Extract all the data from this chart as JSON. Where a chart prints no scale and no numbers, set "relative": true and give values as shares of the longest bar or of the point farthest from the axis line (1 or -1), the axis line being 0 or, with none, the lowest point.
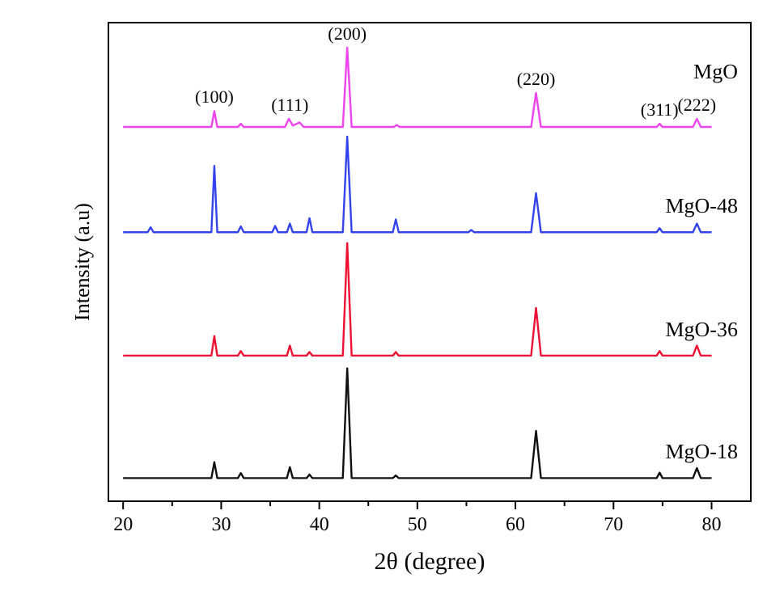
{
  "chart_data": {
    "type": "line",
    "relative": true,
    "xlabel": "2θ (degree)",
    "ylabel": "Intensity (a.u)",
    "xlim": [
      18.5,
      84
    ],
    "xticks": [
      20,
      {
        "value": 25,
        "label": null
      },
      30,
      {
        "value": 35,
        "label": null
      },
      40,
      {
        "value": 45,
        "label": null
      },
      50,
      {
        "value": 55,
        "label": null
      },
      60,
      {
        "value": 65,
        "label": null
      },
      70,
      {
        "value": 75,
        "label": null
      },
      80
    ],
    "grid": false,
    "legend": false,
    "marker": "none",
    "line_style": "solid",
    "series": [
      {
        "name": "MgO",
        "color": "#ee44ee",
        "x": [
          20,
          29.0,
          29.3,
          29.6,
          31.7,
          32.0,
          32.3,
          36.5,
          36.9,
          37.3,
          38,
          38.4,
          42.4,
          42.85,
          43.3,
          47.6,
          47.9,
          48.2,
          61.6,
          62.1,
          62.6,
          74.4,
          74.7,
          75.0,
          78.1,
          78.5,
          78.9,
          80
        ],
        "values": [
          0.825,
          0.825,
          0.86,
          0.825,
          0.825,
          0.832,
          0.825,
          0.825,
          0.843,
          0.828,
          0.835,
          0.825,
          0.825,
          1,
          0.825,
          0.825,
          0.829,
          0.825,
          0.825,
          0.9,
          0.825,
          0.825,
          0.832,
          0.825,
          0.825,
          0.843,
          0.825,
          0.825
        ]
      },
      {
        "name": "MgO-48",
        "color": "#3344ee",
        "x": [
          20,
          22.5,
          22.8,
          23.1,
          29.0,
          29.3,
          29.6,
          31.7,
          32.0,
          32.3,
          35.2,
          35.5,
          35.8,
          36.7,
          37.0,
          37.3,
          38.7,
          39.0,
          39.3,
          42.4,
          42.85,
          43.3,
          47.5,
          47.8,
          48.1,
          55.2,
          55.5,
          55.8,
          61.6,
          62.1,
          62.6,
          74.4,
          74.7,
          75.0,
          78.1,
          78.5,
          78.9,
          80
        ],
        "values": [
          0.593,
          0.593,
          0.604,
          0.593,
          0.593,
          0.739,
          0.593,
          0.593,
          0.606,
          0.593,
          0.593,
          0.607,
          0.593,
          0.593,
          0.612,
          0.593,
          0.593,
          0.624,
          0.593,
          0.593,
          0.804,
          0.593,
          0.593,
          0.621,
          0.593,
          0.593,
          0.598,
          0.593,
          0.593,
          0.679,
          0.593,
          0.593,
          0.602,
          0.593,
          0.593,
          0.612,
          0.593,
          0.593
        ]
      },
      {
        "name": "MgO-36",
        "color": "#ee1133",
        "x": [
          20,
          29.0,
          29.3,
          29.6,
          31.7,
          32.0,
          32.3,
          36.7,
          37.0,
          37.3,
          38.7,
          39.0,
          39.3,
          42.4,
          42.85,
          43.3,
          47.5,
          47.8,
          48.1,
          61.6,
          62.1,
          62.6,
          74.4,
          74.7,
          75.0,
          78.1,
          78.5,
          78.9,
          80
        ],
        "values": [
          0.321,
          0.321,
          0.364,
          0.321,
          0.321,
          0.331,
          0.321,
          0.321,
          0.343,
          0.321,
          0.321,
          0.329,
          0.321,
          0.321,
          0.569,
          0.321,
          0.321,
          0.329,
          0.321,
          0.321,
          0.426,
          0.321,
          0.321,
          0.331,
          0.321,
          0.321,
          0.343,
          0.321,
          0.321
        ]
      },
      {
        "name": "MgO-18",
        "color": "#111111",
        "x": [
          20,
          29.0,
          29.3,
          29.6,
          31.7,
          32.0,
          32.3,
          36.7,
          37.0,
          37.3,
          38.7,
          39.0,
          39.3,
          42.4,
          42.85,
          43.3,
          47.5,
          47.8,
          48.1,
          61.6,
          62.1,
          62.6,
          74.4,
          74.7,
          75.0,
          78.1,
          78.5,
          78.9,
          80
        ],
        "values": [
          0.051,
          0.051,
          0.086,
          0.051,
          0.051,
          0.062,
          0.051,
          0.051,
          0.075,
          0.051,
          0.051,
          0.059,
          0.051,
          0.051,
          0.293,
          0.051,
          0.051,
          0.057,
          0.051,
          0.051,
          0.155,
          0.051,
          0.051,
          0.063,
          0.051,
          0.051,
          0.073,
          0.051,
          0.051
        ]
      }
    ],
    "annotations": [
      {
        "text": "(100)",
        "x": 29.3,
        "y": 0.86
      },
      {
        "text": "(111)",
        "x": 37,
        "y": 0.843
      },
      {
        "text": "(200)",
        "x": 42.85,
        "y": 1
      },
      {
        "text": "(220)",
        "x": 62.1,
        "y": 0.9
      },
      {
        "text": "(311)",
        "x": 74.7,
        "y": 0.832
      },
      {
        "text": "(222)",
        "x": 78.5,
        "y": 0.843
      }
    ]
  }
}
